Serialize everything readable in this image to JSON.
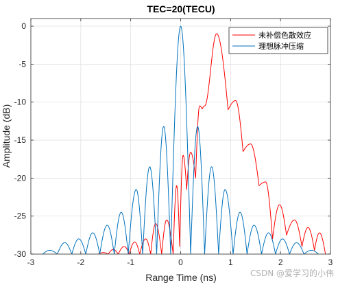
{
  "chart_data": {
    "type": "line",
    "title": "TEC=20(TECU)",
    "xlabel": "Range Time (ns)",
    "ylabel": "Amplitude (dB)",
    "xlim": [
      -3,
      3
    ],
    "ylim": [
      -30,
      1
    ],
    "xticks": [
      -3,
      -2,
      -1,
      0,
      1,
      2,
      3
    ],
    "yticks": [
      0,
      -5,
      -10,
      -15,
      -20,
      -25,
      -30
    ],
    "grid": true,
    "legend_position": "top-right",
    "series": [
      {
        "name": "未补偿色散效应",
        "color": "#ff0000",
        "peaks": [
          [
            -1.55,
            -29.8
          ],
          [
            -1.35,
            -29.4
          ],
          [
            -1.13,
            -29.0
          ],
          [
            -0.92,
            -28.4
          ],
          [
            -0.7,
            -28.0
          ],
          [
            -0.5,
            -26.0
          ],
          [
            -0.28,
            -25.5
          ],
          [
            -0.08,
            -21.0
          ],
          [
            0.05,
            -17.0
          ],
          [
            0.2,
            -16.6
          ],
          [
            0.38,
            -10.5
          ],
          [
            0.48,
            -10.5
          ],
          [
            0.72,
            -1.0
          ],
          [
            1.1,
            -9.8
          ],
          [
            1.4,
            -15.5
          ],
          [
            1.7,
            -20.5
          ],
          [
            1.98,
            -23.5
          ],
          [
            2.28,
            -25.5
          ],
          [
            2.55,
            -26.5
          ],
          [
            2.78,
            -27.2
          ]
        ],
        "valleys": [
          [
            -1.65,
            -30
          ],
          [
            -1.45,
            -30
          ],
          [
            -1.25,
            -30
          ],
          [
            -1.03,
            -30
          ],
          [
            -0.82,
            -30
          ],
          [
            -0.6,
            -30
          ],
          [
            -0.38,
            -30
          ],
          [
            -0.15,
            -30
          ],
          [
            -0.02,
            -29.0
          ],
          [
            0.12,
            -21.5
          ],
          [
            0.3,
            -20.0
          ],
          [
            0.43,
            -10.9
          ],
          [
            0.95,
            -11.0
          ],
          [
            1.25,
            -16.5
          ],
          [
            1.57,
            -21.0
          ],
          [
            1.84,
            -28.0
          ],
          [
            2.12,
            -27.5
          ],
          [
            2.43,
            -29.0
          ],
          [
            2.68,
            -29.5
          ],
          [
            2.9,
            -30
          ]
        ]
      },
      {
        "name": "理想脉冲压缩",
        "color": "#0072bd",
        "peaks": [
          [
            -2.62,
            -29.5
          ],
          [
            -2.32,
            -28.5
          ],
          [
            -2.04,
            -28.0
          ],
          [
            -1.76,
            -27.2
          ],
          [
            -1.47,
            -26.2
          ],
          [
            -1.19,
            -24.5
          ],
          [
            -0.89,
            -21.5
          ],
          [
            -0.62,
            -18.5
          ],
          [
            -0.34,
            -13.2
          ],
          [
            0.0,
            0.0
          ],
          [
            0.34,
            -13.2
          ],
          [
            0.62,
            -18.5
          ],
          [
            0.89,
            -21.5
          ],
          [
            1.19,
            -24.5
          ],
          [
            1.47,
            -26.2
          ],
          [
            1.76,
            -27.2
          ],
          [
            2.04,
            -28.0
          ],
          [
            2.32,
            -28.5
          ],
          [
            2.62,
            -29.5
          ]
        ],
        "valleys": [
          [
            -2.76,
            -30
          ],
          [
            -2.47,
            -30
          ],
          [
            -2.18,
            -30
          ],
          [
            -1.9,
            -30
          ],
          [
            -1.62,
            -30
          ],
          [
            -1.33,
            -30
          ],
          [
            -1.05,
            -30
          ],
          [
            -0.76,
            -30
          ],
          [
            -0.48,
            -30
          ],
          [
            -0.2,
            -30
          ],
          [
            0.2,
            -30
          ],
          [
            0.48,
            -30
          ],
          [
            0.76,
            -30
          ],
          [
            1.05,
            -30
          ],
          [
            1.33,
            -30
          ],
          [
            1.62,
            -30
          ],
          [
            1.9,
            -30
          ],
          [
            2.18,
            -30
          ],
          [
            2.47,
            -30
          ],
          [
            2.76,
            -30
          ]
        ]
      }
    ]
  },
  "watermark": "CSDN @爱学习的小伟"
}
